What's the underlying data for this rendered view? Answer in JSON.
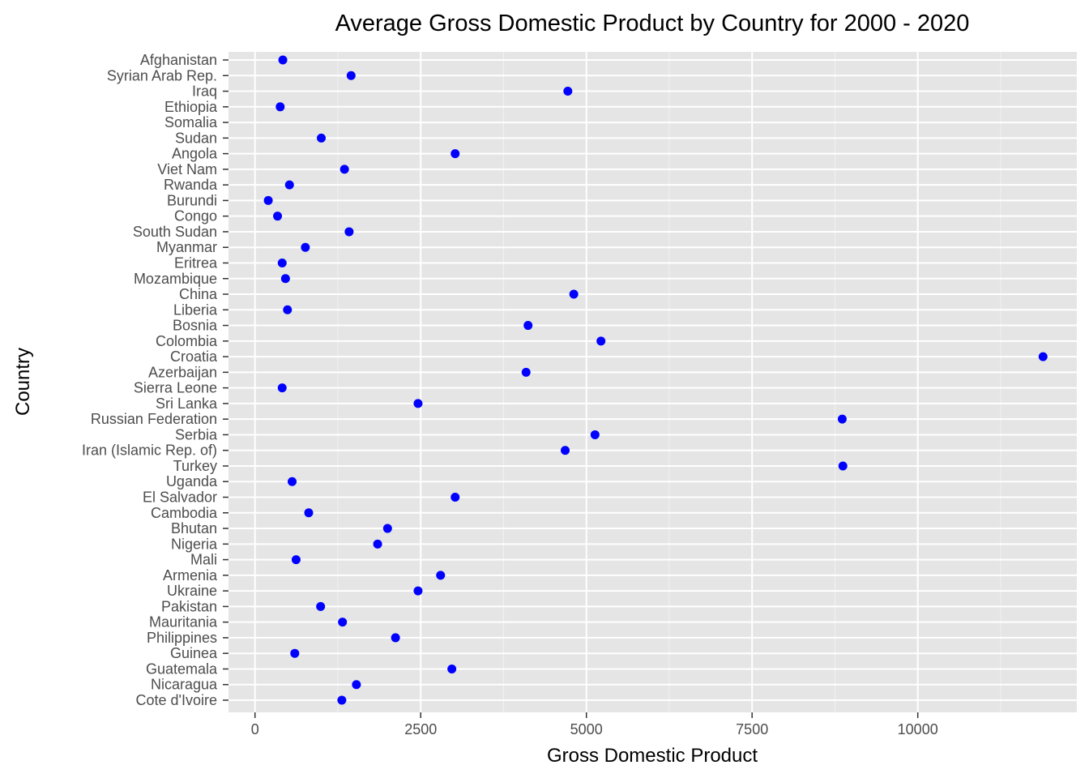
{
  "chart_data": {
    "type": "scatter",
    "title": "Average Gross Domestic Product by Country for 2000 - 2020",
    "xlabel": "Gross Domestic Product",
    "ylabel": "Country",
    "xlim": [
      -400,
      12400
    ],
    "x_ticks": [
      0,
      2500,
      5000,
      7500,
      10000
    ],
    "x_tick_labels": [
      "0",
      "2500",
      "5000",
      "7500",
      "10000"
    ],
    "grid": true,
    "point_color": "#0000ff",
    "panel_color": "#e5e5e5",
    "categories": [
      "Afghanistan",
      "Syrian Arab Rep.",
      "Iraq",
      "Ethiopia",
      "Somalia",
      "Sudan",
      "Angola",
      "Viet Nam",
      "Rwanda",
      "Burundi",
      "Congo",
      "South Sudan",
      "Myanmar",
      "Eritrea",
      "Mozambique",
      "China",
      "Liberia",
      "Bosnia",
      "Colombia",
      "Croatia",
      "Azerbaijan",
      "Sierra Leone",
      "Sri Lanka",
      "Russian Federation",
      "Serbia",
      "Iran (Islamic Rep. of)",
      "Turkey",
      "Uganda",
      "El Salvador",
      "Cambodia",
      "Bhutan",
      "Nigeria",
      "Mali",
      "Armenia",
      "Ukraine",
      "Pakistan",
      "Mauritania",
      "Philippines",
      "Guinea",
      "Guatemala",
      "Nicaragua",
      "Cote d'Ivoire"
    ],
    "values": [
      420,
      1450,
      4720,
      380,
      null,
      1000,
      3020,
      1350,
      520,
      200,
      340,
      1420,
      760,
      410,
      460,
      4810,
      490,
      4120,
      5220,
      11890,
      4090,
      410,
      2460,
      8860,
      5130,
      4680,
      8870,
      560,
      3020,
      810,
      2000,
      1850,
      620,
      2800,
      2460,
      990,
      1320,
      2120,
      600,
      2970,
      1530,
      1310
    ]
  }
}
